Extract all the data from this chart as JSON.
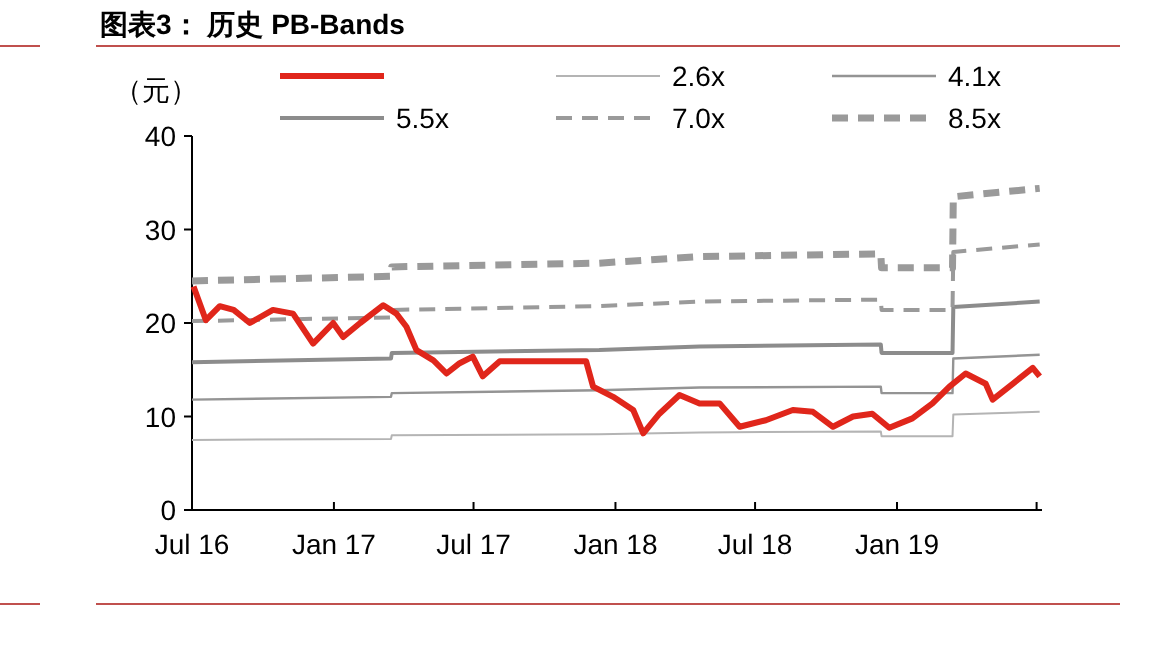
{
  "chart_data": {
    "type": "line",
    "title": "图表3： 历史 PB-Bands",
    "ylabel": "（元）",
    "legend": "top",
    "grid": false,
    "xlim": [
      "2016-07-01",
      "2019-07-08"
    ],
    "ylim": [
      0,
      40
    ],
    "yticks": [
      0,
      10,
      20,
      30,
      40
    ],
    "xticks": [
      {
        "value": "2016-07-01",
        "label": "Jul 16"
      },
      {
        "value": "2017-01-01",
        "label": "Jan 17"
      },
      {
        "value": "2017-07-01",
        "label": "Jul 17"
      },
      {
        "value": "2018-01-01",
        "label": "Jan 18"
      },
      {
        "value": "2018-07-01",
        "label": "Jul 18"
      },
      {
        "value": "2019-01-01",
        "label": "Jan 19"
      },
      {
        "value": "2019-07-01",
        "label": null
      }
    ],
    "series": [
      {
        "color": "#e0261b",
        "line_style": "solid",
        "x": [
          "2016-07-03",
          "2016-07-19",
          "2016-08-06",
          "2016-08-24",
          "2016-09-14",
          "2016-10-14",
          "2016-11-09",
          "2016-12-05",
          "2016-12-31",
          "2017-01-13",
          "2017-02-04",
          "2017-03-06",
          "2017-03-23",
          "2017-04-05",
          "2017-04-18",
          "2017-05-10",
          "2017-05-27",
          "2017-06-13",
          "2017-06-30",
          "2017-07-13",
          "2017-08-04",
          "2017-11-24",
          "2017-12-03",
          "2017-12-29",
          "2018-01-24",
          "2018-02-06",
          "2018-02-27",
          "2018-03-25",
          "2018-04-20",
          "2018-05-16",
          "2018-06-11",
          "2018-07-15",
          "2018-08-19",
          "2018-09-14",
          "2018-10-10",
          "2018-11-05",
          "2018-11-30",
          "2018-12-22",
          "2019-01-21",
          "2019-02-16",
          "2019-03-10",
          "2019-03-31",
          "2019-04-26",
          "2019-05-05",
          "2019-05-31",
          "2019-06-26",
          "2019-07-05"
        ],
        "values": [
          23.9,
          20.3,
          21.8,
          21.4,
          20.0,
          21.4,
          21.0,
          17.8,
          20.0,
          18.5,
          20.0,
          21.9,
          21.0,
          19.6,
          17.1,
          16.0,
          14.6,
          15.7,
          16.4,
          14.3,
          15.9,
          15.9,
          13.2,
          12.1,
          10.7,
          8.2,
          10.3,
          12.3,
          11.4,
          11.4,
          8.9,
          9.6,
          10.7,
          10.5,
          8.9,
          10.0,
          10.3,
          8.8,
          9.8,
          11.4,
          13.2,
          14.6,
          13.5,
          11.8,
          13.5,
          15.2,
          14.3
        ]
      },
      {
        "name": "2.6x",
        "color": "#b4b4b4",
        "line_style": "solid",
        "x": [
          "2016-07-01",
          "2017-03-16",
          "2017-03-17",
          "2017-12-11",
          "2018-04-20",
          "2018-12-11",
          "2018-12-12",
          "2019-03-14",
          "2019-03-15",
          "2019-07-05"
        ],
        "values": [
          7.5,
          7.6,
          8.0,
          8.1,
          8.3,
          8.4,
          7.9,
          7.9,
          10.2,
          10.5
        ]
      },
      {
        "name": "4.1x",
        "color": "#949494",
        "line_style": "solid",
        "x": [
          "2016-07-01",
          "2017-03-16",
          "2017-03-17",
          "2017-12-11",
          "2018-04-20",
          "2018-12-11",
          "2018-12-12",
          "2019-03-14",
          "2019-03-15",
          "2019-07-05"
        ],
        "values": [
          11.8,
          12.1,
          12.5,
          12.8,
          13.1,
          13.2,
          12.5,
          12.5,
          16.2,
          16.6
        ]
      },
      {
        "name": "5.5x",
        "color": "#8c8c8c",
        "line_style": "solid",
        "x": [
          "2016-07-01",
          "2017-03-16",
          "2017-03-17",
          "2017-12-11",
          "2018-04-20",
          "2018-12-11",
          "2018-12-12",
          "2019-03-14",
          "2019-03-15",
          "2019-07-05"
        ],
        "values": [
          15.8,
          16.2,
          16.8,
          17.1,
          17.5,
          17.7,
          16.8,
          16.8,
          21.7,
          22.3
        ]
      },
      {
        "name": "7.0x",
        "color": "#9a9a9a",
        "line_style": "dashed",
        "x": [
          "2016-07-01",
          "2017-03-16",
          "2017-03-17",
          "2017-12-11",
          "2018-04-20",
          "2018-12-11",
          "2018-12-12",
          "2019-03-14",
          "2019-03-15",
          "2019-07-05"
        ],
        "values": [
          20.2,
          20.6,
          21.4,
          21.8,
          22.3,
          22.5,
          21.4,
          21.4,
          27.6,
          28.4
        ]
      },
      {
        "name": "8.5x",
        "color": "#9a9a9a",
        "line_style": "dashed",
        "x": [
          "2016-07-01",
          "2017-03-16",
          "2017-03-17",
          "2017-12-11",
          "2018-04-20",
          "2018-12-11",
          "2018-12-12",
          "2019-03-14",
          "2019-03-15",
          "2019-07-05"
        ],
        "values": [
          24.5,
          25.0,
          26.0,
          26.4,
          27.1,
          27.4,
          25.9,
          25.9,
          33.5,
          34.4
        ]
      }
    ]
  }
}
